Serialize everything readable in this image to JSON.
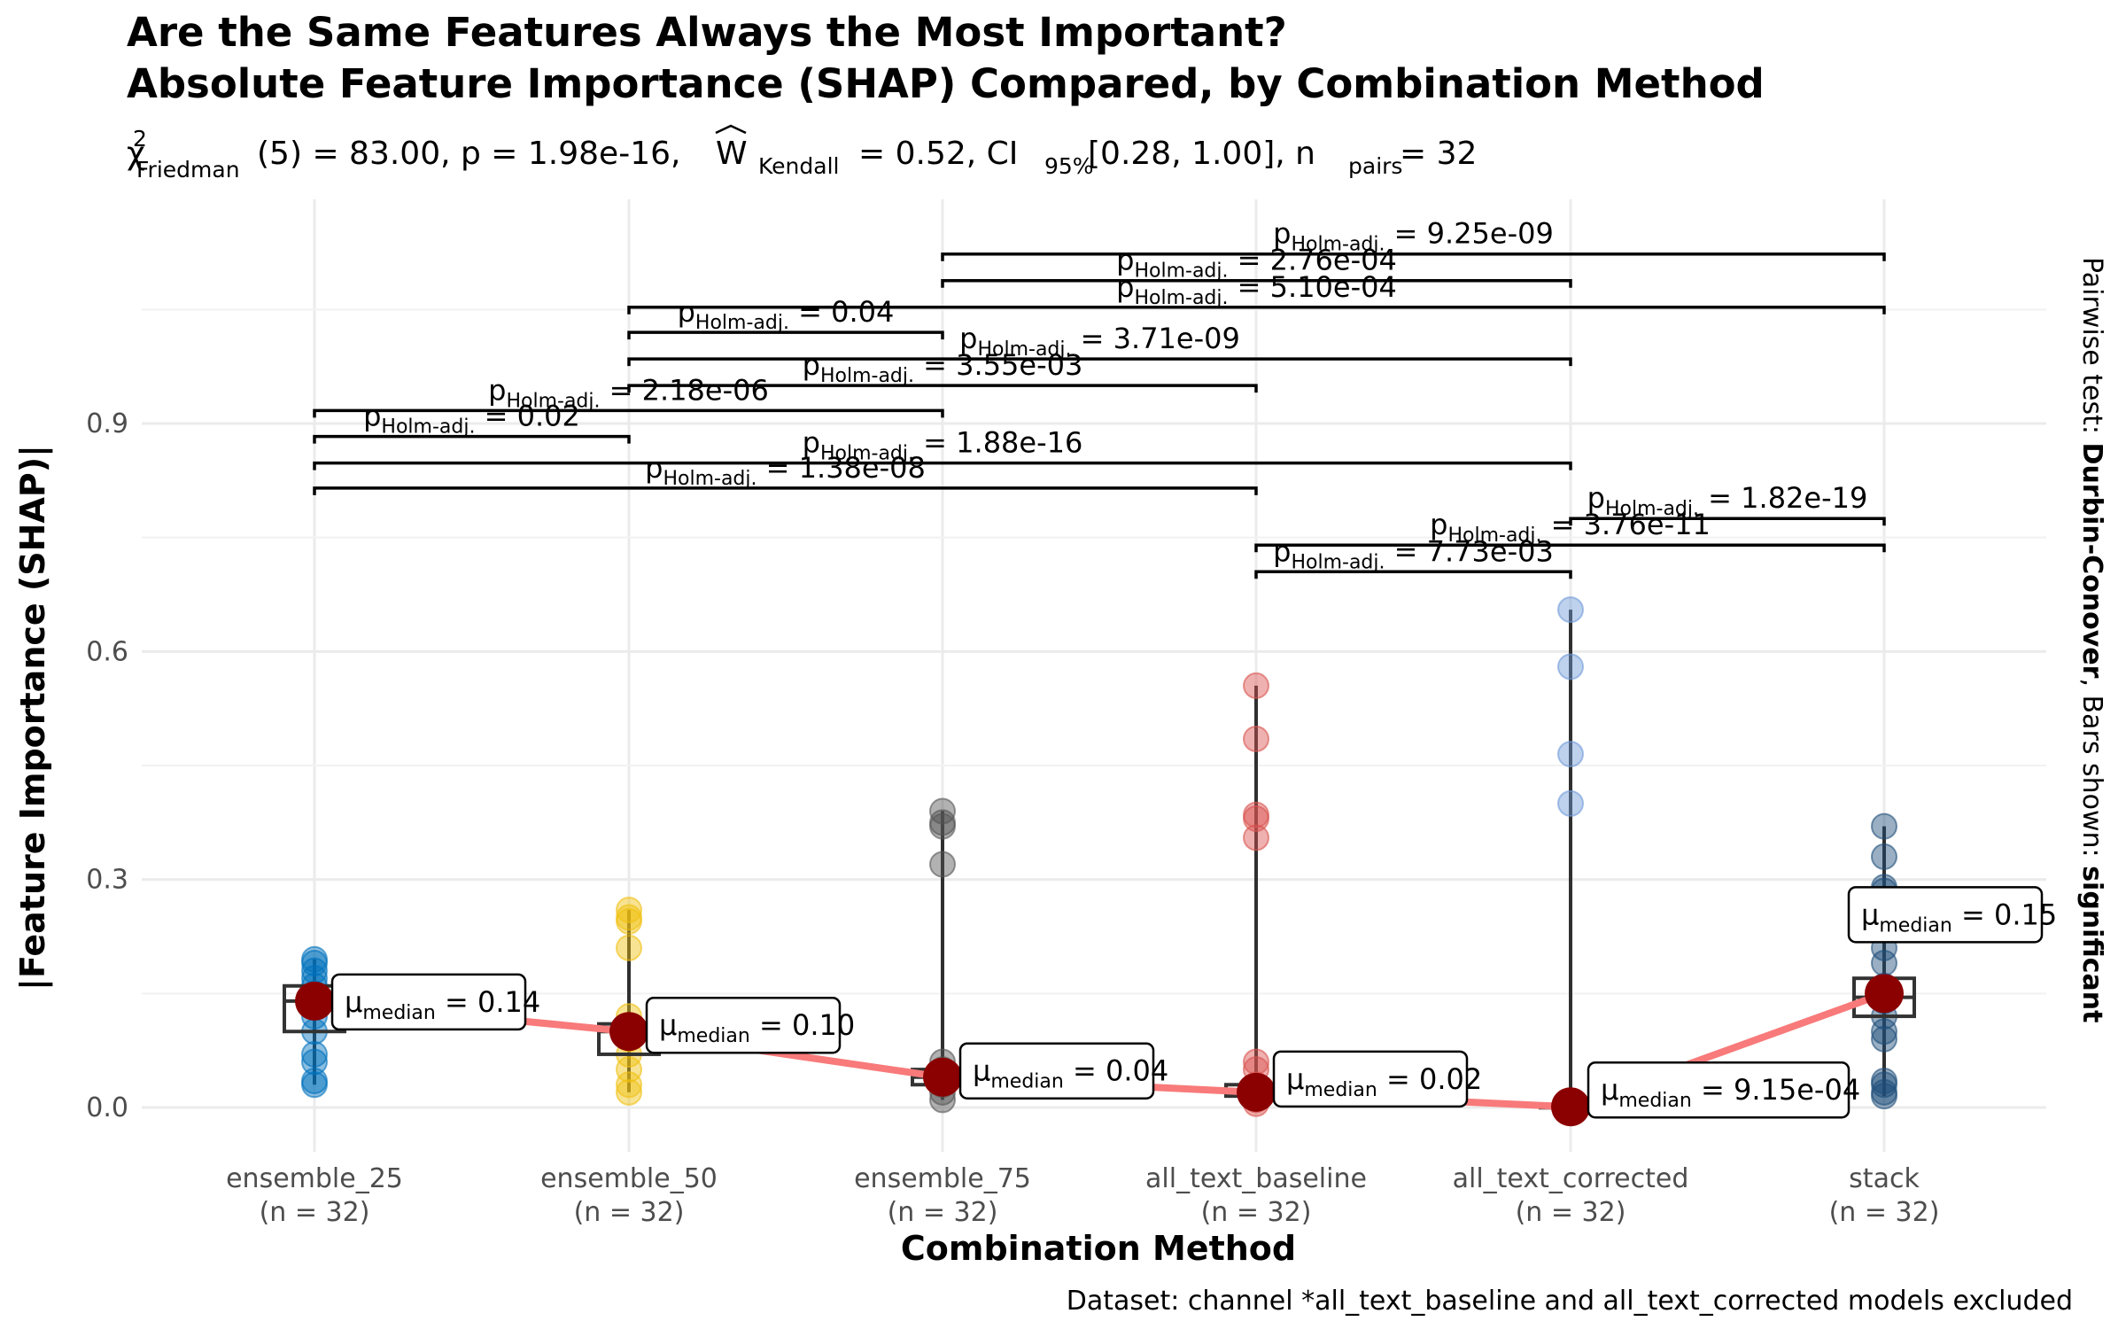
{
  "chart_data": {
    "type": "box-violin-scatter",
    "title_line1": "Are the Same Features Always the Most Important?",
    "title_line2": "Absolute Feature Importance (SHAP) Compared, by Combination Method",
    "subtitle": {
      "chi_symbol": "χ",
      "chi_sup": "2",
      "chi_sub": "Friedman",
      "stat": "(5) = 83.00, p = 1.98e-16, ",
      "w_symbol": "W",
      "w_sub": "Kendall",
      "w_val": " = 0.52, CI",
      "ci_sub": "95%",
      "ci_val": " [0.28, 1.00], n",
      "n_sub": "pairs",
      "n_val": " = 32"
    },
    "xlabel": "Combination Method",
    "ylabel": "|Feature Importance (SHAP)|",
    "ylim": [
      -0.06,
      1.18
    ],
    "y_ticks": [
      0.0,
      0.3,
      0.6,
      0.9
    ],
    "y_tick_labels": [
      "0.0",
      "0.3",
      "0.6",
      "0.9"
    ],
    "caption": "Dataset:  channel *all_text_baseline and all_text_corrected models excluded",
    "side_label": {
      "prefix": "Pairwise test: ",
      "test": "Durbin-Conover",
      "middle": ", Bars shown: ",
      "shown": "significant"
    },
    "median_label": {
      "prefix": "μ",
      "sub": "median",
      "eq": " = "
    },
    "pvalue_label": {
      "prefix": "p",
      "sub": "Holm-adj.",
      "eq": " = "
    },
    "median_line_color": "#f87a7a",
    "median_point_color": "#8b0000",
    "groups": [
      {
        "name": "ensemble_25",
        "n_label": "(n = 32)",
        "color": "#0072bd",
        "box": [
          0.07,
          0.1,
          0.14,
          0.16,
          0.2
        ],
        "points": [
          0.03,
          0.035,
          0.06,
          0.07,
          0.1,
          0.12,
          0.14,
          0.15,
          0.16,
          0.17,
          0.18,
          0.19,
          0.195
        ],
        "median": 0.14,
        "median_text": "0.14"
      },
      {
        "name": "ensemble_50",
        "n_label": "(n = 32)",
        "color": "#f0c010",
        "box": [
          0.045,
          0.07,
          0.1,
          0.11,
          0.25
        ],
        "points": [
          0.02,
          0.03,
          0.05,
          0.07,
          0.09,
          0.1,
          0.12,
          0.21,
          0.245,
          0.25,
          0.26
        ],
        "median": 0.1,
        "median_text": "0.10"
      },
      {
        "name": "ensemble_75",
        "n_label": "(n = 32)",
        "color": "#555555",
        "box": [
          0.025,
          0.03,
          0.04,
          0.05,
          0.38
        ],
        "points": [
          0.01,
          0.02,
          0.03,
          0.04,
          0.05,
          0.06,
          0.32,
          0.37,
          0.375,
          0.39
        ],
        "median": 0.04,
        "median_text": "0.04"
      },
      {
        "name": "all_text_baseline",
        "n_label": "(n = 32)",
        "color": "#d9534f",
        "box": [
          0.01,
          0.015,
          0.02,
          0.03,
          0.55
        ],
        "points": [
          0.005,
          0.01,
          0.02,
          0.03,
          0.05,
          0.06,
          0.355,
          0.38,
          0.385,
          0.485,
          0.555
        ],
        "median": 0.02,
        "median_text": "0.02"
      },
      {
        "name": "all_text_corrected",
        "n_label": "(n = 32)",
        "color": "#6e9ad8",
        "box": [
          0.0,
          0.0,
          0.0009,
          0.002,
          0.66
        ],
        "points": [
          0.0,
          0.001,
          0.4,
          0.465,
          0.58,
          0.655
        ],
        "median": 0.000915,
        "median_text": "9.15e-04"
      },
      {
        "name": "stack",
        "n_label": "(n = 32)",
        "color": "#1f4e79",
        "box": [
          0.1,
          0.12,
          0.145,
          0.17,
          0.37
        ],
        "points": [
          0.015,
          0.02,
          0.03,
          0.035,
          0.09,
          0.1,
          0.12,
          0.14,
          0.16,
          0.19,
          0.21,
          0.24,
          0.26,
          0.27,
          0.285,
          0.29,
          0.33,
          0.37
        ],
        "median": 0.15,
        "median_text": "0.15"
      }
    ],
    "comparisons": [
      {
        "from": 0,
        "to": 3,
        "y": 0.815,
        "p": "1.38e-08"
      },
      {
        "from": 0,
        "to": 4,
        "y": 0.848,
        "p": "1.88e-16"
      },
      {
        "from": 0,
        "to": 1,
        "y": 0.883,
        "p": "0.02"
      },
      {
        "from": 0,
        "to": 2,
        "y": 0.917,
        "p": "2.18e-06"
      },
      {
        "from": 1,
        "to": 3,
        "y": 0.95,
        "p": "3.55e-03"
      },
      {
        "from": 1,
        "to": 4,
        "y": 0.985,
        "p": "3.71e-09"
      },
      {
        "from": 1,
        "to": 2,
        "y": 1.02,
        "p": "0.04"
      },
      {
        "from": 1,
        "to": 5,
        "y": 1.053,
        "p": "5.10e-04"
      },
      {
        "from": 2,
        "to": 4,
        "y": 1.088,
        "p": "2.76e-04"
      },
      {
        "from": 2,
        "to": 5,
        "y": 1.123,
        "p": "9.25e-09"
      },
      {
        "from": 3,
        "to": 4,
        "y": 0.705,
        "p": "7.73e-03"
      },
      {
        "from": 3,
        "to": 5,
        "y": 0.74,
        "p": "3.76e-11"
      },
      {
        "from": 4,
        "to": 5,
        "y": 0.775,
        "p": "1.82e-19"
      }
    ]
  }
}
